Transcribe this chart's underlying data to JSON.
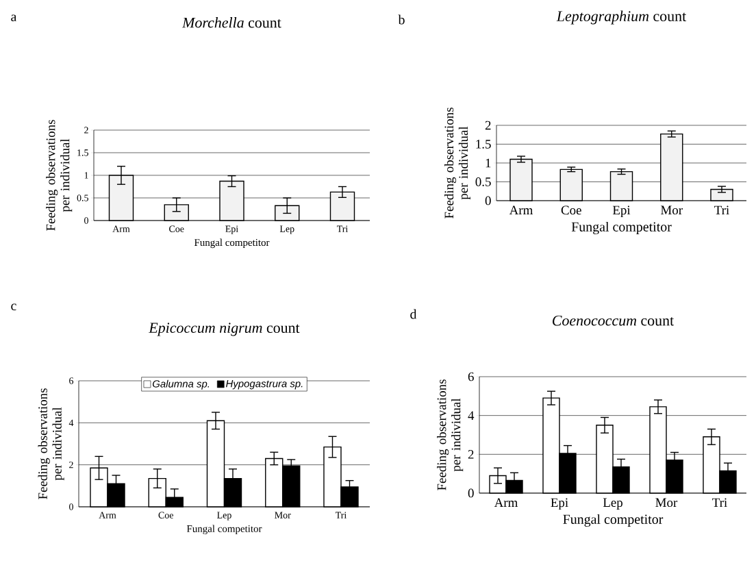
{
  "chart_data": [
    {
      "type": "bar",
      "title": "*Morchella* count",
      "xlabel": "Fungal competitor",
      "ylabel": "Feeding observations per individual",
      "categories": [
        "Arm",
        "Coe",
        "Epi",
        "Lep",
        "Tri"
      ],
      "series": [
        {
          "color": "#f2f2f2",
          "values": [
            1.0,
            0.35,
            0.87,
            0.33,
            0.63
          ],
          "errors": [
            0.2,
            0.15,
            0.12,
            0.17,
            0.12
          ]
        }
      ],
      "ylim": [
        0,
        2
      ],
      "yticks": [
        0,
        0.5,
        1,
        1.5,
        2
      ],
      "grid": "y",
      "annotations": [
        "a"
      ]
    },
    {
      "type": "bar",
      "title": "*Leptographium* count",
      "xlabel": "Fungal competitor",
      "ylabel": "Feeding observations per individual",
      "categories": [
        "Arm",
        "Coe",
        "Epi",
        "Mor",
        "Tri"
      ],
      "series": [
        {
          "color": "#f2f2f2",
          "values": [
            1.1,
            0.83,
            0.77,
            1.77,
            0.3
          ],
          "errors": [
            0.08,
            0.06,
            0.07,
            0.08,
            0.08
          ]
        }
      ],
      "ylim": [
        0,
        2
      ],
      "yticks": [
        0,
        0.5,
        1,
        1.5,
        2
      ],
      "grid": "y",
      "annotations": [
        "b"
      ]
    },
    {
      "type": "bar",
      "title": "*Epicoccum nigrum* count",
      "xlabel": "Fungal competitor",
      "ylabel": "Feeding observations per individual",
      "categories": [
        "Arm",
        "Coe",
        "Lep",
        "Mor",
        "Tri"
      ],
      "series": [
        {
          "name": "Galumna sp.",
          "color": "#ffffff",
          "values": [
            1.85,
            1.35,
            4.1,
            2.3,
            2.85
          ],
          "errors": [
            0.55,
            0.45,
            0.4,
            0.3,
            0.5
          ]
        },
        {
          "name": "Hypogastrura sp.",
          "color": "#000000",
          "values": [
            1.1,
            0.45,
            1.35,
            1.95,
            0.95
          ],
          "errors": [
            0.4,
            0.4,
            0.45,
            0.3,
            0.3
          ]
        }
      ],
      "ylim": [
        0,
        6
      ],
      "yticks": [
        0,
        2,
        4,
        6
      ],
      "grid": "y",
      "legend": "top",
      "annotations": [
        "c"
      ]
    },
    {
      "type": "bar",
      "title": "*Coenococcum* count",
      "xlabel": "Fungal competitor",
      "ylabel": "Feeding observations per individual",
      "categories": [
        "Arm",
        "Epi",
        "Lep",
        "Mor",
        "Tri"
      ],
      "series": [
        {
          "color": "#ffffff",
          "values": [
            0.9,
            4.9,
            3.5,
            4.45,
            2.9
          ],
          "errors": [
            0.4,
            0.35,
            0.4,
            0.35,
            0.4
          ]
        },
        {
          "color": "#000000",
          "values": [
            0.65,
            2.05,
            1.35,
            1.7,
            1.15
          ],
          "errors": [
            0.4,
            0.4,
            0.4,
            0.4,
            0.4
          ]
        }
      ],
      "ylim": [
        0,
        6
      ],
      "yticks": [
        0,
        2,
        4,
        6
      ],
      "grid": "y",
      "annotations": [
        "d"
      ]
    }
  ]
}
